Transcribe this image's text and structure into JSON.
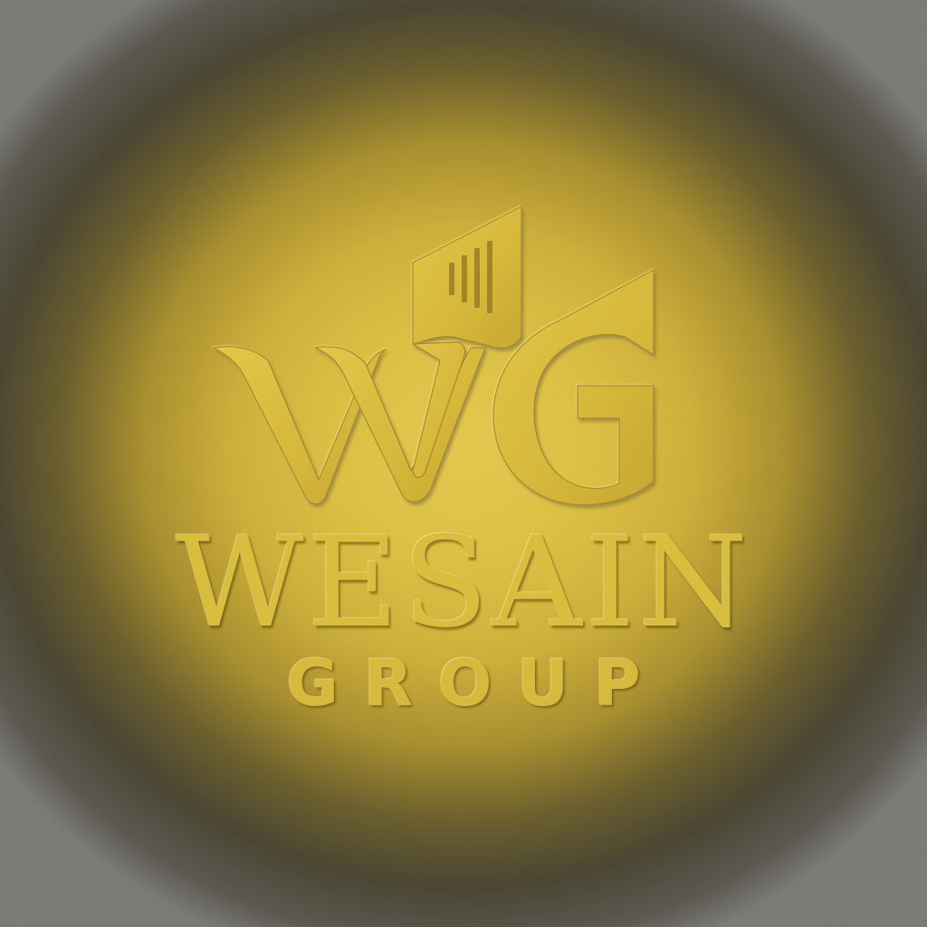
{
  "brand": {
    "monogram": "WG",
    "name": "WESAIN",
    "tagline": "GROUP"
  },
  "icons": {
    "mark": "wg-monogram-paintbrush-icon"
  },
  "colors": {
    "gold": "#d9bd3f",
    "gold_highlight": "#f1dc78",
    "gold_shadow": "#8a7220",
    "vignette": "#5c5a50"
  }
}
